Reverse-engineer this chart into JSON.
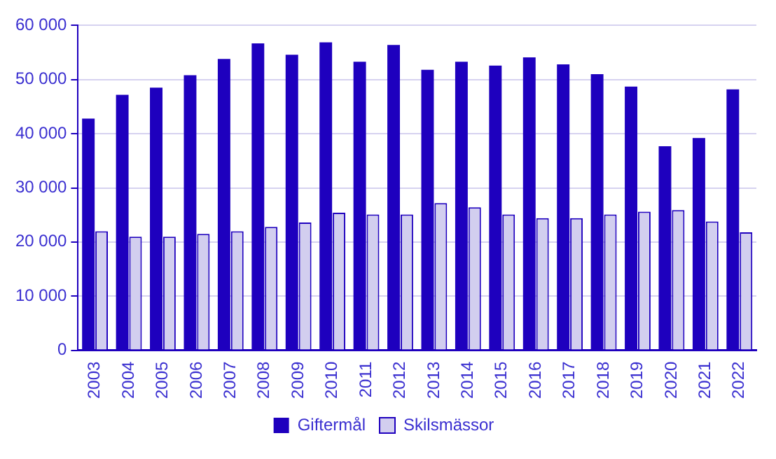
{
  "chart_data": {
    "type": "bar",
    "categories": [
      "2003",
      "2004",
      "2005",
      "2006",
      "2007",
      "2008",
      "2009",
      "2010",
      "2011",
      "2012",
      "2013",
      "2014",
      "2015",
      "2016",
      "2017",
      "2018",
      "2019",
      "2020",
      "2021",
      "2022"
    ],
    "series": [
      {
        "name": "Giftermål",
        "color": "#1e00be",
        "values": [
          42800,
          47200,
          48500,
          50800,
          53800,
          56700,
          54600,
          56900,
          53300,
          56400,
          51800,
          53300,
          52600,
          54100,
          52800,
          51000,
          48700,
          37700,
          39200,
          48200
        ]
      },
      {
        "name": "Skilsmässor",
        "color": "#d2ceef",
        "values": [
          22000,
          21000,
          21000,
          21500,
          22000,
          22800,
          23600,
          25400,
          25100,
          25100,
          27200,
          26400,
          25100,
          24400,
          24400,
          25100,
          25600,
          25900,
          23800,
          21800
        ]
      }
    ],
    "ylim": [
      0,
      60000
    ],
    "yticks": [
      {
        "value": 0,
        "label": "0"
      },
      {
        "value": 10000,
        "label": "10 000"
      },
      {
        "value": 20000,
        "label": "20 000"
      },
      {
        "value": 30000,
        "label": "30 000"
      },
      {
        "value": 40000,
        "label": "40 000"
      },
      {
        "value": 50000,
        "label": "50 000"
      },
      {
        "value": 60000,
        "label": "60 000"
      }
    ],
    "grid": "y",
    "legend": "bottom"
  }
}
